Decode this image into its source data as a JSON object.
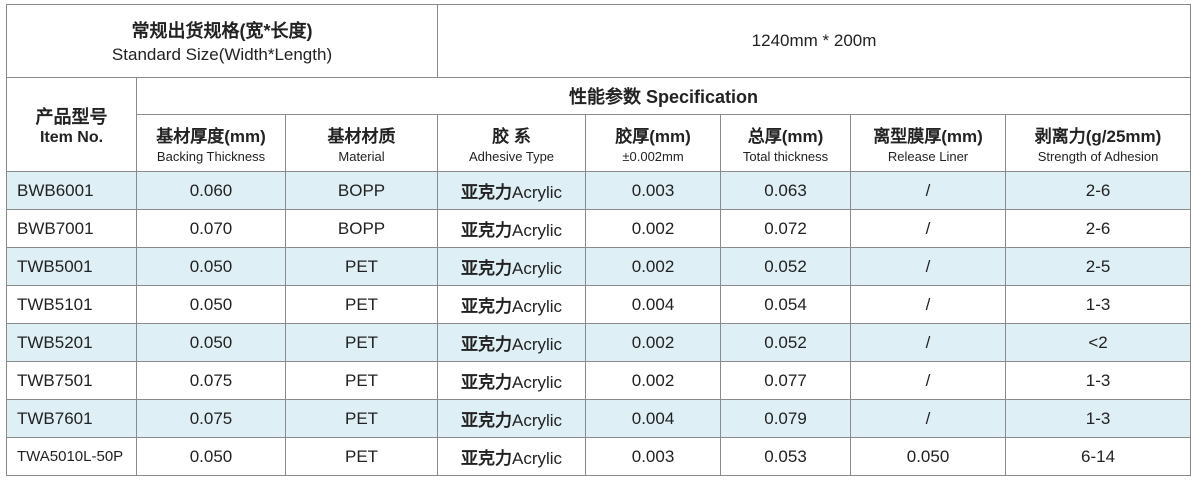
{
  "standard": {
    "label_cn": "常规出货规格(宽*长度)",
    "label_en": "Standard Size(Width*Length)",
    "value": "1240mm * 200m"
  },
  "table": {
    "item_header": {
      "cn": "产品型号",
      "en": "Item No."
    },
    "group_header": "性能参数 Specification",
    "columns": [
      {
        "cn": "基材厚度(mm)",
        "en": "Backing Thickness"
      },
      {
        "cn": "基材材质",
        "en": "Material"
      },
      {
        "cn": "胶 系",
        "en": "Adhesive Type"
      },
      {
        "cn": "胶厚(mm)",
        "en": "±0.002mm"
      },
      {
        "cn": "总厚(mm)",
        "en": "Total thickness"
      },
      {
        "cn": "离型膜厚(mm)",
        "en": "Release Liner"
      },
      {
        "cn": "剥离力(g/25mm)",
        "en": "Strength of Adhesion"
      }
    ],
    "rows": [
      [
        "BWB6001",
        "0.060",
        "BOPP",
        {
          "cn": "亚克力",
          "en": "Acrylic"
        },
        "0.003",
        "0.063",
        "/",
        "2-6"
      ],
      [
        "BWB7001",
        "0.070",
        "BOPP",
        {
          "cn": "亚克力",
          "en": "Acrylic"
        },
        "0.002",
        "0.072",
        "/",
        "2-6"
      ],
      [
        "TWB5001",
        "0.050",
        "PET",
        {
          "cn": "亚克力",
          "en": "Acrylic"
        },
        "0.002",
        "0.052",
        "/",
        "2-5"
      ],
      [
        "TWB5101",
        "0.050",
        "PET",
        {
          "cn": "亚克力",
          "en": "Acrylic"
        },
        "0.004",
        "0.054",
        "/",
        "1-3"
      ],
      [
        "TWB5201",
        "0.050",
        "PET",
        {
          "cn": "亚克力",
          "en": "Acrylic"
        },
        "0.002",
        "0.052",
        "/",
        "<2"
      ],
      [
        "TWB7501",
        "0.075",
        "PET",
        {
          "cn": "亚克力",
          "en": "Acrylic"
        },
        "0.002",
        "0.077",
        "/",
        "1-3"
      ],
      [
        "TWB7601",
        "0.075",
        "PET",
        {
          "cn": "亚克力",
          "en": "Acrylic"
        },
        "0.004",
        "0.079",
        "/",
        "1-3"
      ],
      [
        "TWA5010L-50P",
        "0.050",
        "PET",
        {
          "cn": "亚克力",
          "en": "Acrylic"
        },
        "0.003",
        "0.053",
        "0.050",
        "6-14"
      ]
    ]
  }
}
